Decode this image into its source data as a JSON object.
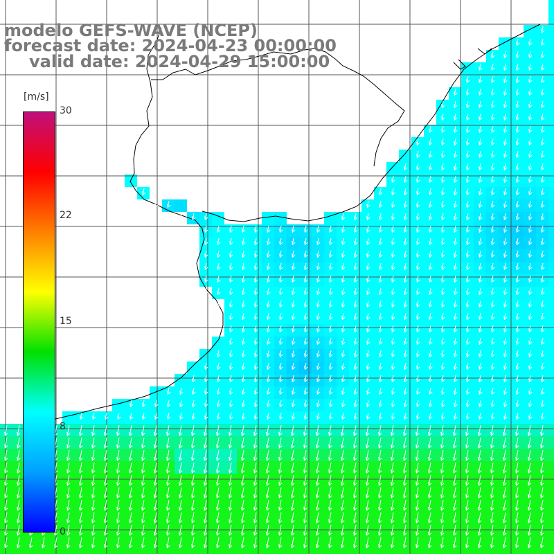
{
  "title": {
    "line1": "modelo GEFS-WAVE (NCEP)",
    "line2": "forecast date: 2024-04-23 00:00:00",
    "line3": "valid date: 2024-04-29 15:00:00"
  },
  "colorbar": {
    "unit": "[m/s]",
    "ticks": [
      "30",
      "22",
      "15",
      "8",
      "0"
    ],
    "stops": [
      "#0000ff",
      "#00a0ff",
      "#00ffff",
      "#00e000",
      "#ffff00",
      "#ff8000",
      "#ff0000",
      "#c0107a"
    ]
  },
  "colors": {
    "land": "#ffffff",
    "grid": "#555555",
    "coast": "#000000",
    "arrow": "#ffffff"
  },
  "legend_placement": "left"
}
